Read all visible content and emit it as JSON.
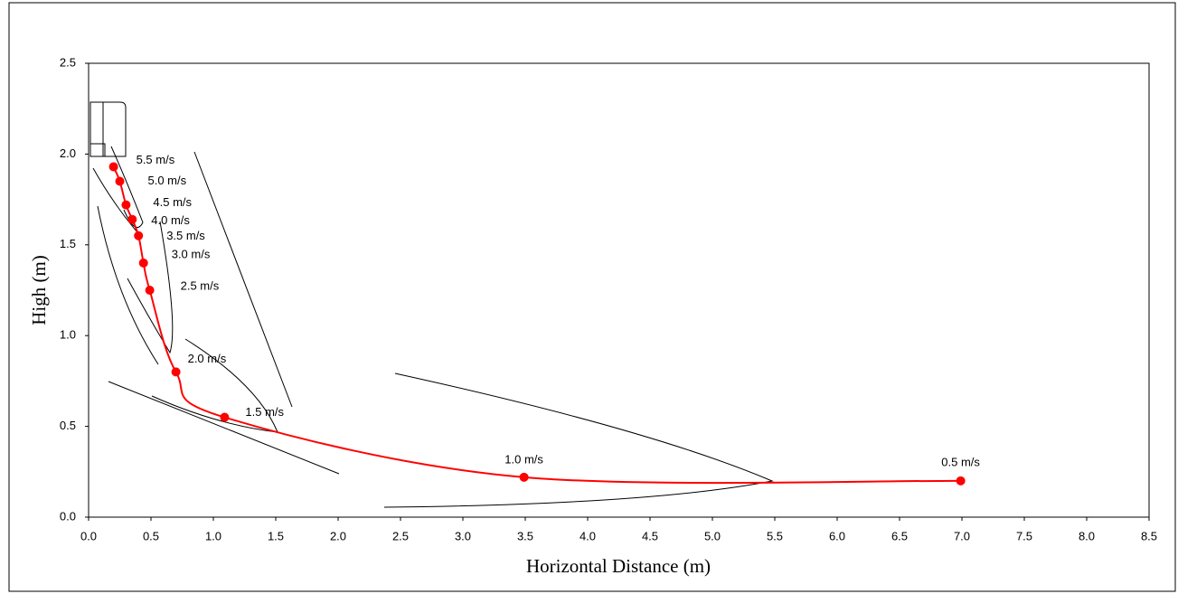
{
  "chart_data": {
    "type": "line",
    "x_label": "Horizontal Distance (m)",
    "y_label": "High (m)",
    "xlim": [
      0,
      8.5
    ],
    "ylim": [
      0,
      2.5
    ],
    "xticks": [
      {
        "value": 0,
        "label": "0.0"
      },
      0.5,
      {
        "value": 1,
        "label": "1.0"
      },
      1.5,
      {
        "value": 2,
        "label": "2.0"
      },
      2.5,
      {
        "value": 3,
        "label": "3.0"
      },
      3.5,
      {
        "value": 4,
        "label": "4.0"
      },
      4.5,
      {
        "value": 5,
        "label": "5.0"
      },
      5.5,
      {
        "value": 6,
        "label": "6.0"
      },
      6.5,
      {
        "value": 7,
        "label": "7.0"
      },
      7.5,
      {
        "value": 8,
        "label": "8.0"
      },
      8.5
    ],
    "yticks": [
      {
        "value": 0,
        "label": "0.0"
      },
      0.5,
      {
        "value": 1,
        "label": "1.0"
      },
      1.5,
      {
        "value": 2,
        "label": "2.0"
      },
      2.5
    ],
    "grid": false,
    "series": [
      {
        "color": "#ff0000",
        "x": [
          0.2,
          0.25,
          0.3,
          0.35,
          0.4,
          0.44,
          0.49,
          0.7,
          1.09,
          3.49,
          6.99
        ],
        "values": [
          1.93,
          1.85,
          1.72,
          1.64,
          1.55,
          1.4,
          1.25,
          0.8,
          0.55,
          0.22,
          0.2
        ],
        "point_labels": [
          "5.5 m/s",
          "5.0 m/s",
          "4.5 m/s",
          "4.0 m/s",
          "3.5 m/s",
          "3.0 m/s",
          "2.5 m/s",
          "2.0 m/s",
          "1.5 m/s",
          "1.0 m/s",
          "0.5 m/s"
        ]
      }
    ]
  }
}
